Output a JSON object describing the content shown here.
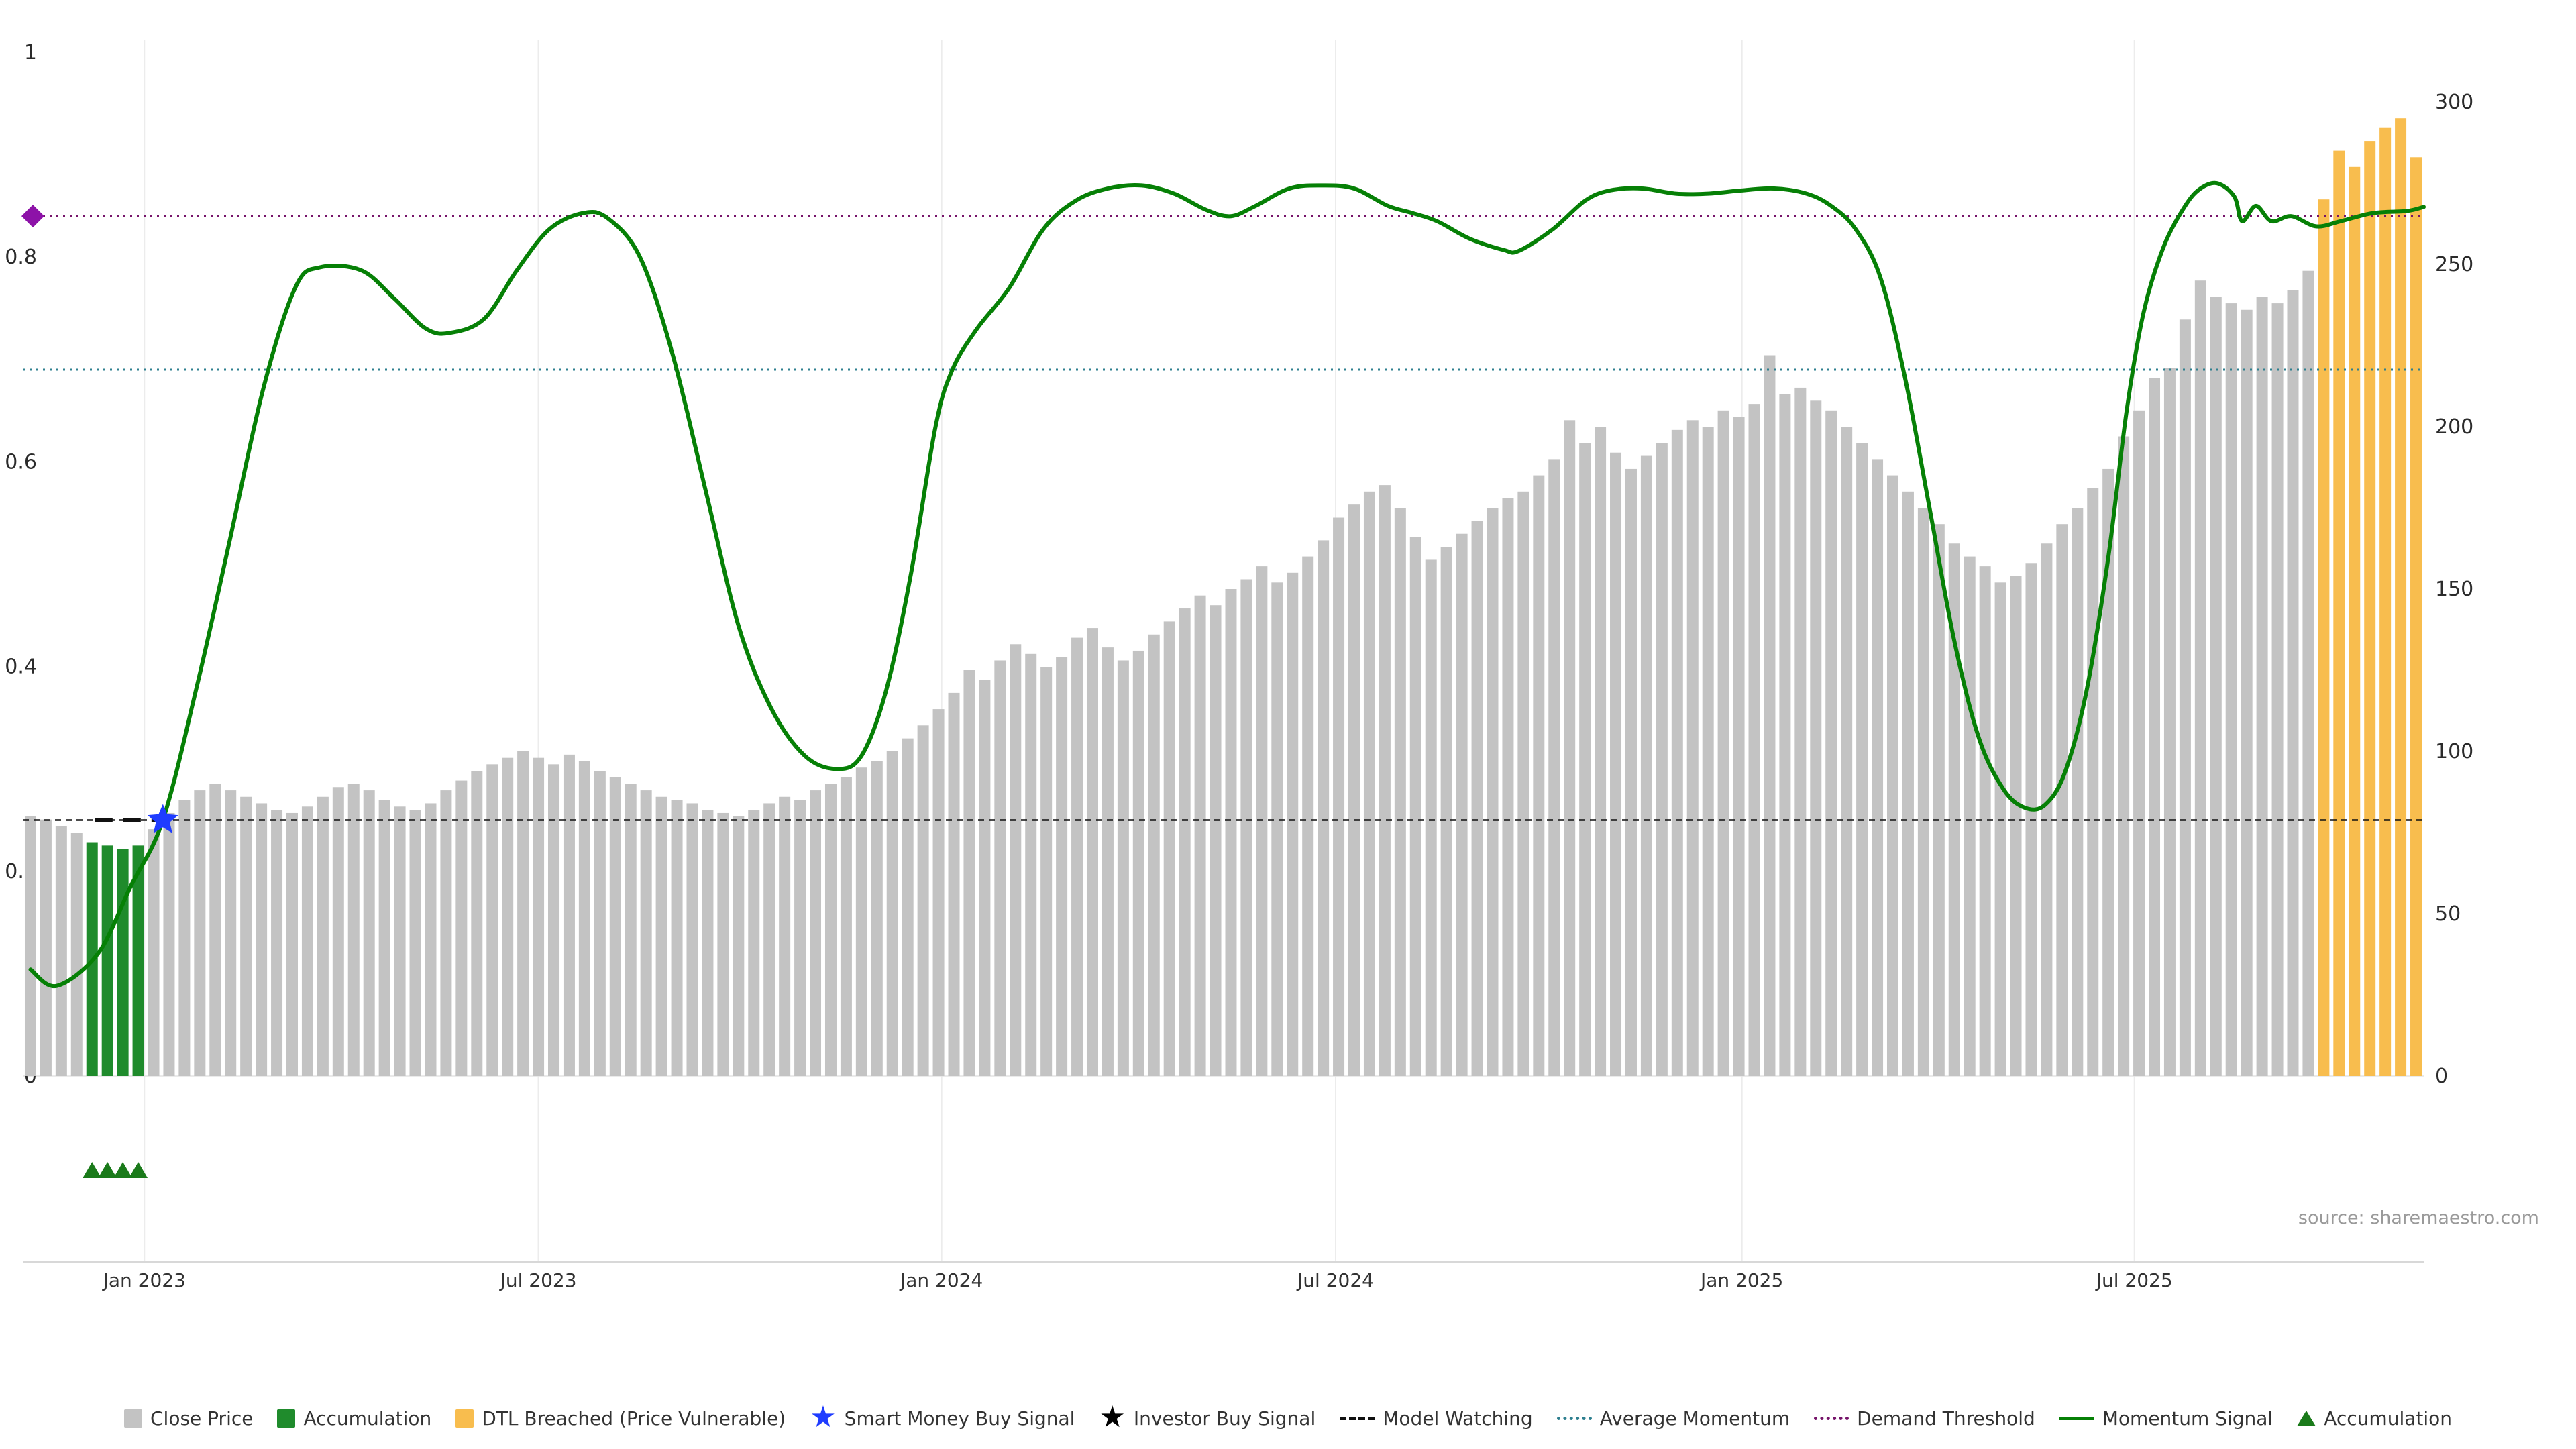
{
  "source_text": "source: sharemaestro.com",
  "colors": {
    "close_price": "#c3c3c3",
    "accumulation_bar": "#1f8b2c",
    "dtl_breached": "#f8bd4e",
    "momentum_line": "#068006",
    "average_momentum": "#2e7f8f",
    "demand_threshold": "#76146a",
    "model_watching": "#111111",
    "smart_money_star": "#1f3cff",
    "investor_star": "#000000",
    "accumulation_marker": "#1a7a1a",
    "demand_marker": "#8d12a8",
    "grid": "#ececec",
    "axis_line": "#d8d8d8",
    "baseline": "#e3e3e3",
    "axis_text": "#2b2b2b",
    "tick_text": "#333333"
  },
  "legend": {
    "items": [
      {
        "label": "Close Price",
        "type": "square",
        "color_key": "close_price"
      },
      {
        "label": "Accumulation",
        "type": "square",
        "color_key": "accumulation_bar"
      },
      {
        "label": "DTL Breached (Price Vulnerable)",
        "type": "square",
        "color_key": "dtl_breached"
      },
      {
        "label": "Smart Money Buy Signal",
        "type": "star",
        "color_key": "smart_money_star"
      },
      {
        "label": "Investor Buy Signal",
        "type": "star",
        "color_key": "investor_star"
      },
      {
        "label": "Model Watching",
        "type": "dash",
        "color_key": "model_watching"
      },
      {
        "label": "Average Momentum",
        "type": "dotline",
        "color_key": "average_momentum"
      },
      {
        "label": "Demand Threshold",
        "type": "dotline",
        "color_key": "demand_threshold"
      },
      {
        "label": "Momentum Signal",
        "type": "line",
        "color_key": "momentum_line"
      },
      {
        "label": "Accumulation",
        "type": "triangle",
        "color_key": "accumulation_marker"
      }
    ]
  },
  "chart_data": {
    "type": "bar",
    "subtype": "dual-axis bar + line (weekly stock model chart)",
    "title": "",
    "left_axis": {
      "label": "",
      "range": [
        0,
        1
      ],
      "ticks": [
        "0",
        "0.2",
        "0.4",
        "0.6",
        "0.8",
        "1"
      ],
      "tick_values": [
        0,
        0.2,
        0.4,
        0.6,
        0.8,
        1
      ]
    },
    "right_axis": {
      "label": "",
      "range": [
        0,
        300
      ],
      "ticks": [
        "0",
        "50",
        "100",
        "150",
        "200",
        "250",
        "300"
      ],
      "tick_values": [
        0,
        50,
        100,
        150,
        200,
        250,
        300
      ]
    },
    "x_ticks": [
      {
        "label": "Jan 2023",
        "index": 7.4
      },
      {
        "label": "Jul 2023",
        "index": 33.0
      },
      {
        "label": "Jan 2024",
        "index": 59.2
      },
      {
        "label": "Jul 2024",
        "index": 84.8
      },
      {
        "label": "Jan 2025",
        "index": 111.2
      },
      {
        "label": "Jul 2025",
        "index": 136.7
      }
    ],
    "close_price": {
      "name": "Close Price (right axis)",
      "values": [
        80,
        79,
        77,
        75,
        72,
        71,
        70,
        71,
        76,
        81,
        85,
        88,
        90,
        88,
        86,
        84,
        82,
        81,
        83,
        86,
        89,
        90,
        88,
        85,
        83,
        82,
        84,
        88,
        91,
        94,
        96,
        98,
        100,
        98,
        96,
        99,
        97,
        94,
        92,
        90,
        88,
        86,
        85,
        84,
        82,
        81,
        80,
        82,
        84,
        86,
        85,
        88,
        90,
        92,
        95,
        97,
        100,
        104,
        108,
        113,
        118,
        125,
        122,
        128,
        133,
        130,
        126,
        129,
        135,
        138,
        132,
        128,
        131,
        136,
        140,
        144,
        148,
        145,
        150,
        153,
        157,
        152,
        155,
        160,
        165,
        172,
        176,
        180,
        182,
        175,
        166,
        159,
        163,
        167,
        171,
        175,
        178,
        180,
        185,
        190,
        202,
        195,
        200,
        192,
        187,
        191,
        195,
        199,
        202,
        200,
        205,
        203,
        207,
        222,
        210,
        212,
        208,
        205,
        200,
        195,
        190,
        185,
        180,
        175,
        170,
        164,
        160,
        157,
        152,
        154,
        158,
        164,
        170,
        175,
        181,
        187,
        197,
        205,
        215,
        218,
        233,
        245,
        240,
        238,
        236,
        240,
        238,
        242,
        248,
        270,
        285,
        280,
        288,
        292,
        295,
        283
      ]
    },
    "accumulation_bar_indices": [
      4,
      5,
      6,
      7
    ],
    "dtl_breached_indices": [
      149,
      150,
      151,
      152,
      153,
      154,
      155
    ],
    "momentum_signal": {
      "name": "Momentum Signal (left axis)",
      "points": [
        [
          0,
          0.104
        ],
        [
          1.7,
          0.088
        ],
        [
          4.4,
          0.12
        ],
        [
          6.5,
          0.185
        ],
        [
          8.6,
          0.25
        ],
        [
          10.8,
          0.38
        ],
        [
          12.9,
          0.52
        ],
        [
          15.1,
          0.67
        ],
        [
          17.2,
          0.77
        ],
        [
          18.8,
          0.79
        ],
        [
          21.5,
          0.787
        ],
        [
          23.6,
          0.76
        ],
        [
          25.7,
          0.73
        ],
        [
          27.3,
          0.726
        ],
        [
          29.5,
          0.74
        ],
        [
          31.6,
          0.787
        ],
        [
          33.7,
          0.827
        ],
        [
          35.9,
          0.843
        ],
        [
          37.5,
          0.838
        ],
        [
          39.6,
          0.8
        ],
        [
          41.7,
          0.706
        ],
        [
          43.9,
          0.57
        ],
        [
          46.0,
          0.44
        ],
        [
          48.1,
          0.36
        ],
        [
          50.3,
          0.313
        ],
        [
          52.4,
          0.3
        ],
        [
          54.0,
          0.313
        ],
        [
          55.6,
          0.377
        ],
        [
          57.2,
          0.49
        ],
        [
          58.8,
          0.634
        ],
        [
          59.9,
          0.69
        ],
        [
          61.5,
          0.73
        ],
        [
          63.6,
          0.77
        ],
        [
          65.8,
          0.827
        ],
        [
          67.9,
          0.855
        ],
        [
          70.0,
          0.867
        ],
        [
          72.2,
          0.87
        ],
        [
          74.3,
          0.862
        ],
        [
          76.4,
          0.846
        ],
        [
          78.0,
          0.84
        ],
        [
          79.6,
          0.85
        ],
        [
          81.8,
          0.867
        ],
        [
          83.9,
          0.87
        ],
        [
          86.0,
          0.867
        ],
        [
          88.2,
          0.85
        ],
        [
          89.8,
          0.843
        ],
        [
          91.4,
          0.835
        ],
        [
          93.5,
          0.818
        ],
        [
          95.7,
          0.807
        ],
        [
          96.7,
          0.806
        ],
        [
          98.9,
          0.827
        ],
        [
          101.0,
          0.855
        ],
        [
          102.6,
          0.865
        ],
        [
          104.7,
          0.867
        ],
        [
          106.9,
          0.862
        ],
        [
          109.0,
          0.862
        ],
        [
          111.1,
          0.865
        ],
        [
          113.3,
          0.867
        ],
        [
          115.4,
          0.862
        ],
        [
          117.0,
          0.85
        ],
        [
          118.6,
          0.827
        ],
        [
          120.2,
          0.78
        ],
        [
          121.8,
          0.682
        ],
        [
          123.4,
          0.554
        ],
        [
          125.0,
          0.425
        ],
        [
          126.6,
          0.33
        ],
        [
          128.2,
          0.28
        ],
        [
          129.6,
          0.262
        ],
        [
          130.9,
          0.265
        ],
        [
          132.2,
          0.297
        ],
        [
          133.6,
          0.377
        ],
        [
          135.0,
          0.506
        ],
        [
          136.2,
          0.65
        ],
        [
          137.3,
          0.746
        ],
        [
          138.6,
          0.81
        ],
        [
          140.0,
          0.85
        ],
        [
          141.0,
          0.867
        ],
        [
          142.1,
          0.872
        ],
        [
          143.2,
          0.859
        ],
        [
          143.7,
          0.835
        ],
        [
          144.6,
          0.85
        ],
        [
          145.6,
          0.835
        ],
        [
          146.9,
          0.84
        ],
        [
          148.5,
          0.83
        ],
        [
          150.1,
          0.835
        ],
        [
          152.2,
          0.843
        ],
        [
          154.4,
          0.845
        ],
        [
          155.5,
          0.849
        ]
      ]
    },
    "average_momentum_level": 0.69,
    "demand_threshold_level": 0.84,
    "model_watching_level": 0.25,
    "model_watching_bold_segment_indices": [
      4.2,
      8.2
    ],
    "smart_money_buy_signal": {
      "index": 8.6,
      "value": 0.25
    },
    "demand_threshold_marker": {
      "value": 0.84
    },
    "accumulation_marker_indices": [
      4,
      5,
      6,
      7
    ],
    "legend_position": "bottom",
    "grid": "vertical-only"
  }
}
